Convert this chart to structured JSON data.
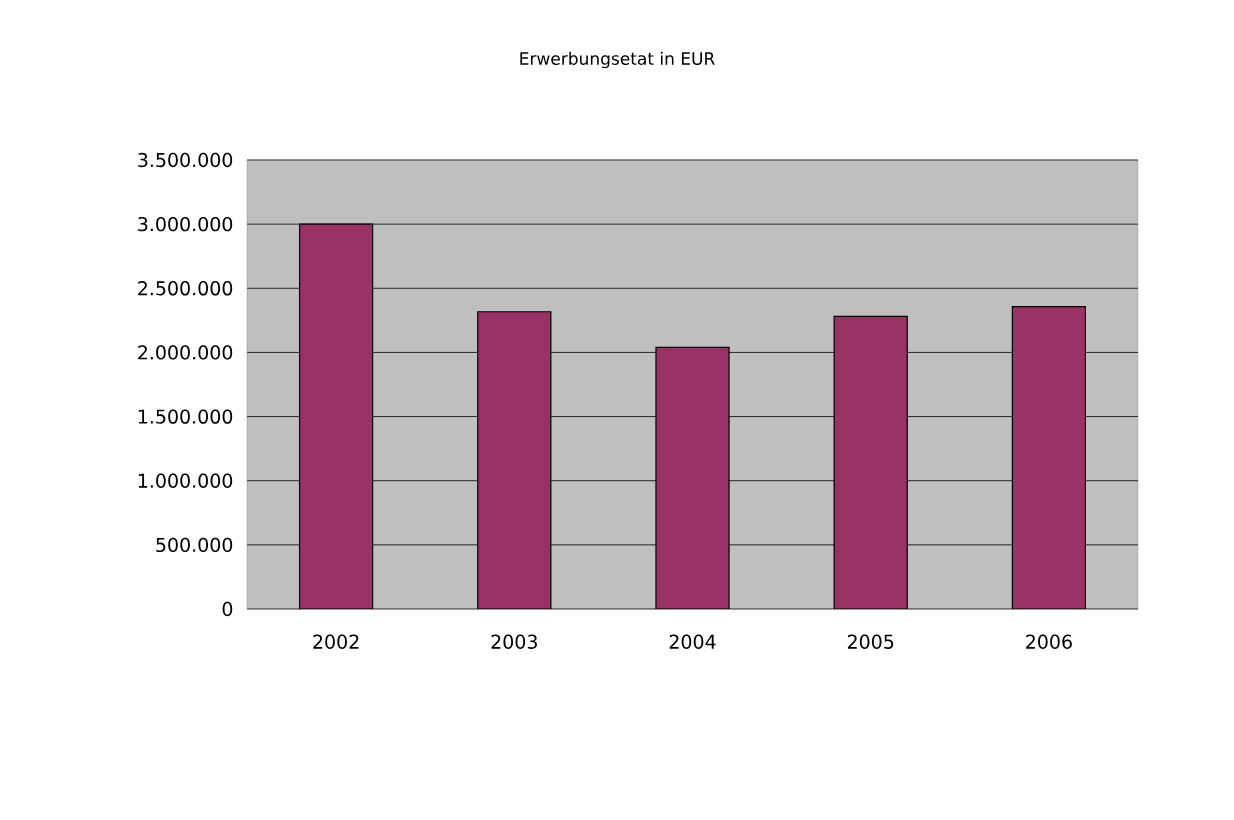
{
  "chart_data": {
    "type": "bar",
    "title": "Erwerbungsetat in EUR",
    "categories": [
      "2002",
      "2003",
      "2004",
      "2005",
      "2006"
    ],
    "values": [
      3000000,
      2317000,
      2039000,
      2281000,
      2357000
    ],
    "color": "#993366",
    "ylim": [
      0,
      3500000
    ],
    "yticks": [
      0,
      {
        "value": 500000,
        "label": "500.000"
      },
      {
        "value": 1000000,
        "label": "1.000.000"
      },
      {
        "value": 1500000,
        "label": "1.500.000"
      },
      {
        "value": 2000000,
        "label": "2.000.000"
      },
      {
        "value": 2500000,
        "label": "2.500.000"
      },
      {
        "value": 3000000,
        "label": "3.000.000"
      },
      {
        "value": 3500000,
        "label": "3.500.000"
      }
    ],
    "grid": "y"
  }
}
